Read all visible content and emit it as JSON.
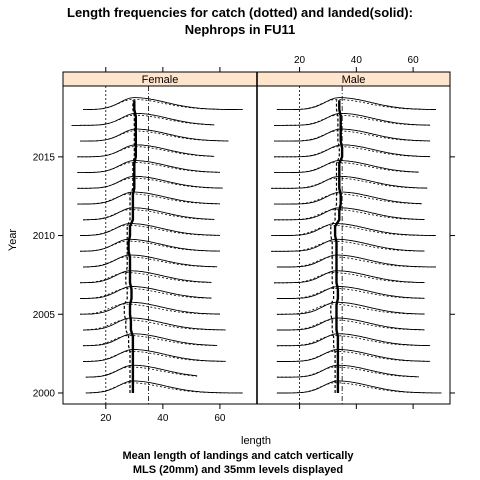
{
  "chart_data": {
    "type": "line",
    "title_line1": "Length frequencies for catch (dotted) and landed(solid):",
    "title_line2": "Nephrops in FU11",
    "xlabel": "length",
    "ylabel": "Year",
    "caption_line1": "Mean length of landings and catch vertically",
    "caption_line2": "MLS (20mm) and 35mm levels displayed",
    "xlim": [
      5,
      73
    ],
    "ylim": [
      1999.3,
      2019.5
    ],
    "x_ticks": [
      20,
      40,
      60
    ],
    "y_ticks": [
      2000,
      2005,
      2010,
      2015
    ],
    "reference_lines": [
      20,
      35
    ],
    "panels": [
      {
        "name": "Female",
        "years": [
          2000,
          2001,
          2002,
          2003,
          2004,
          2005,
          2006,
          2007,
          2008,
          2009,
          2010,
          2011,
          2012,
          2013,
          2014,
          2015,
          2016,
          2017,
          2018
        ],
        "landed_mean": [
          29.5,
          29.5,
          29.5,
          29.5,
          28.8,
          28.5,
          29.0,
          28.5,
          28.5,
          28.0,
          28.5,
          29.5,
          29.5,
          30.0,
          30.0,
          30.5,
          30.5,
          30.5,
          30.0
        ],
        "catch_mean": [
          28.5,
          28.5,
          28.5,
          28.0,
          27.0,
          26.5,
          27.5,
          27.0,
          27.5,
          27.5,
          27.5,
          28.5,
          28.5,
          29.5,
          29.5,
          30.0,
          30.0,
          30.0,
          29.5
        ],
        "min_length": [
          13,
          13,
          12,
          12,
          12,
          11,
          11,
          11,
          12,
          11,
          11,
          12,
          10,
          10,
          10,
          10,
          11,
          8,
          12
        ],
        "max_length": [
          68,
          52,
          62,
          59,
          62,
          60,
          57,
          57,
          59,
          60,
          60,
          58,
          60,
          61,
          60,
          58,
          63,
          58,
          68
        ]
      },
      {
        "name": "Male",
        "years": [
          2000,
          2001,
          2002,
          2003,
          2004,
          2005,
          2006,
          2007,
          2008,
          2009,
          2010,
          2011,
          2012,
          2013,
          2014,
          2015,
          2016,
          2017,
          2018
        ],
        "landed_mean": [
          33.5,
          33.5,
          33.5,
          33.5,
          33.0,
          33.0,
          33.5,
          33.0,
          33.0,
          33.0,
          32.5,
          34.0,
          34.5,
          34.0,
          34.0,
          35.0,
          34.5,
          34.5,
          34.0
        ],
        "catch_mean": [
          32.5,
          32.5,
          32.5,
          32.0,
          31.5,
          31.0,
          32.0,
          31.5,
          31.5,
          31.5,
          31.0,
          32.5,
          33.0,
          33.0,
          33.0,
          34.0,
          33.5,
          33.5,
          33.0
        ],
        "min_length": [
          12,
          12,
          12,
          12,
          12,
          12,
          12,
          11,
          12,
          10,
          10,
          11,
          11,
          10,
          11,
          11,
          11,
          11,
          12
        ],
        "max_length": [
          70,
          62,
          66,
          66,
          64,
          64,
          64,
          64,
          68,
          64,
          68,
          64,
          63,
          65,
          62,
          66,
          66,
          66,
          68
        ]
      }
    ],
    "colors": {
      "strip_fill": "#ffe5cc",
      "line": "#000000",
      "background": "#ffffff"
    }
  }
}
